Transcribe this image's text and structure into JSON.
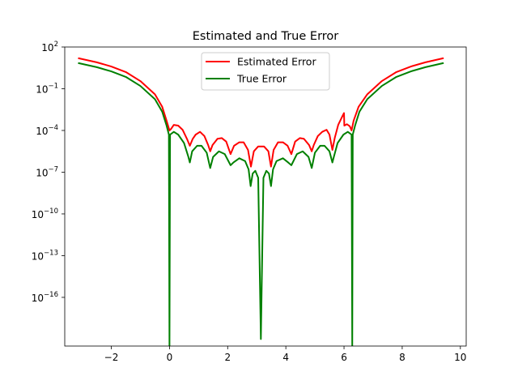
{
  "chart_data": {
    "type": "line",
    "title": "Estimated and True Error",
    "xlabel": "",
    "ylabel": "",
    "xlim": [
      -3.6,
      10.2
    ],
    "ylim_log10": [
      -19.5,
      2
    ],
    "yscale": "log",
    "x_ticks": [
      -2,
      0,
      2,
      4,
      6,
      8,
      10
    ],
    "x_tick_labels": [
      "−2",
      "0",
      "2",
      "4",
      "6",
      "8",
      "10"
    ],
    "y_ticks_log10": [
      2,
      -1,
      -4,
      -7,
      -10,
      -13,
      -16
    ],
    "y_tick_labels": [
      {
        "base": "10",
        "exp": "2"
      },
      {
        "base": "10",
        "exp": "−1"
      },
      {
        "base": "10",
        "exp": "−4"
      },
      {
        "base": "10",
        "exp": "−7"
      },
      {
        "base": "10",
        "exp": "−10"
      },
      {
        "base": "10",
        "exp": "−13"
      },
      {
        "base": "10",
        "exp": "−16"
      }
    ],
    "grid": false,
    "legend": "upper center",
    "series": [
      {
        "name": "Estimated Error",
        "color": "#ff0000",
        "points": [
          [
            -3.1416,
            1.2
          ],
          [
            -2.5,
            0.9
          ],
          [
            -2.0,
            0.6
          ],
          [
            -1.5,
            0.2
          ],
          [
            -1.0,
            -0.45
          ],
          [
            -0.5,
            -1.4
          ],
          [
            -0.25,
            -2.3
          ],
          [
            -0.1,
            -3.3
          ],
          [
            0.0,
            -4.0
          ],
          [
            0.05,
            -3.9
          ],
          [
            0.15,
            -3.6
          ],
          [
            0.3,
            -3.65
          ],
          [
            0.45,
            -3.95
          ],
          [
            0.6,
            -4.6
          ],
          [
            0.7,
            -5.1
          ],
          [
            0.8,
            -4.6
          ],
          [
            0.9,
            -4.3
          ],
          [
            1.05,
            -4.1
          ],
          [
            1.2,
            -4.4
          ],
          [
            1.33,
            -5.05
          ],
          [
            1.4,
            -5.5
          ],
          [
            1.48,
            -5.05
          ],
          [
            1.65,
            -4.6
          ],
          [
            1.8,
            -4.55
          ],
          [
            1.95,
            -4.8
          ],
          [
            2.1,
            -5.7
          ],
          [
            2.22,
            -5.1
          ],
          [
            2.4,
            -4.85
          ],
          [
            2.55,
            -4.85
          ],
          [
            2.7,
            -5.4
          ],
          [
            2.8,
            -6.6
          ],
          [
            2.9,
            -5.5
          ],
          [
            3.05,
            -5.15
          ],
          [
            3.25,
            -5.15
          ],
          [
            3.4,
            -5.5
          ],
          [
            3.49,
            -6.6
          ],
          [
            3.58,
            -5.4
          ],
          [
            3.73,
            -4.85
          ],
          [
            3.9,
            -4.85
          ],
          [
            4.06,
            -5.1
          ],
          [
            4.19,
            -5.7
          ],
          [
            4.32,
            -4.8
          ],
          [
            4.48,
            -4.55
          ],
          [
            4.62,
            -4.6
          ],
          [
            4.8,
            -5.05
          ],
          [
            4.89,
            -5.5
          ],
          [
            4.96,
            -5.05
          ],
          [
            5.1,
            -4.4
          ],
          [
            5.25,
            -4.1
          ],
          [
            5.4,
            -3.95
          ],
          [
            5.5,
            -4.3
          ],
          [
            5.6,
            -5.4
          ],
          [
            5.68,
            -4.55
          ],
          [
            5.8,
            -3.6
          ],
          [
            5.95,
            -2.95
          ],
          [
            6.0,
            -2.75
          ],
          [
            6.01,
            -3.65
          ],
          [
            6.1,
            -3.55
          ],
          [
            6.2,
            -3.7
          ],
          [
            6.26,
            -4.0
          ],
          [
            6.33,
            -3.3
          ],
          [
            6.5,
            -2.3
          ],
          [
            6.8,
            -1.4
          ],
          [
            7.3,
            -0.45
          ],
          [
            7.8,
            0.2
          ],
          [
            8.3,
            0.6
          ],
          [
            8.8,
            0.9
          ],
          [
            9.4248,
            1.2
          ]
        ]
      },
      {
        "name": "True Error",
        "color": "#008000",
        "points": [
          [
            -3.1416,
            0.85
          ],
          [
            -2.5,
            0.55
          ],
          [
            -2.0,
            0.25
          ],
          [
            -1.5,
            -0.15
          ],
          [
            -1.0,
            -0.8
          ],
          [
            -0.5,
            -1.75
          ],
          [
            -0.25,
            -2.65
          ],
          [
            -0.1,
            -3.65
          ],
          [
            -0.02,
            -4.3
          ],
          [
            0.0,
            -19.5
          ],
          [
            0.02,
            -4.3
          ],
          [
            0.15,
            -4.1
          ],
          [
            0.3,
            -4.3
          ],
          [
            0.5,
            -4.9
          ],
          [
            0.65,
            -5.9
          ],
          [
            0.7,
            -6.3
          ],
          [
            0.78,
            -5.5
          ],
          [
            0.95,
            -5.1
          ],
          [
            1.1,
            -5.1
          ],
          [
            1.28,
            -5.6
          ],
          [
            1.4,
            -6.7
          ],
          [
            1.5,
            -5.9
          ],
          [
            1.7,
            -5.5
          ],
          [
            1.9,
            -5.7
          ],
          [
            2.1,
            -6.5
          ],
          [
            2.2,
            -6.3
          ],
          [
            2.4,
            -6.0
          ],
          [
            2.6,
            -6.2
          ],
          [
            2.72,
            -6.8
          ],
          [
            2.79,
            -8.0
          ],
          [
            2.86,
            -7.1
          ],
          [
            2.95,
            -6.9
          ],
          [
            3.05,
            -7.4
          ],
          [
            3.1416,
            -19.0
          ],
          [
            3.23,
            -7.4
          ],
          [
            3.33,
            -6.9
          ],
          [
            3.42,
            -7.1
          ],
          [
            3.49,
            -8.0
          ],
          [
            3.56,
            -6.8
          ],
          [
            3.68,
            -6.2
          ],
          [
            3.9,
            -6.0
          ],
          [
            4.08,
            -6.3
          ],
          [
            4.19,
            -6.5
          ],
          [
            4.38,
            -5.7
          ],
          [
            4.58,
            -5.5
          ],
          [
            4.78,
            -5.9
          ],
          [
            4.89,
            -6.7
          ],
          [
            5.0,
            -5.6
          ],
          [
            5.18,
            -5.1
          ],
          [
            5.33,
            -5.1
          ],
          [
            5.5,
            -5.5
          ],
          [
            5.6,
            -6.3
          ],
          [
            5.65,
            -5.9
          ],
          [
            5.78,
            -4.9
          ],
          [
            5.98,
            -4.3
          ],
          [
            6.13,
            -4.1
          ],
          [
            6.26,
            -4.3
          ],
          [
            6.283,
            -19.5
          ],
          [
            6.3,
            -4.3
          ],
          [
            6.38,
            -3.65
          ],
          [
            6.53,
            -2.65
          ],
          [
            6.8,
            -1.75
          ],
          [
            7.3,
            -0.8
          ],
          [
            7.8,
            -0.15
          ],
          [
            8.3,
            0.25
          ],
          [
            8.8,
            0.55
          ],
          [
            9.4248,
            0.85
          ]
        ]
      }
    ]
  }
}
